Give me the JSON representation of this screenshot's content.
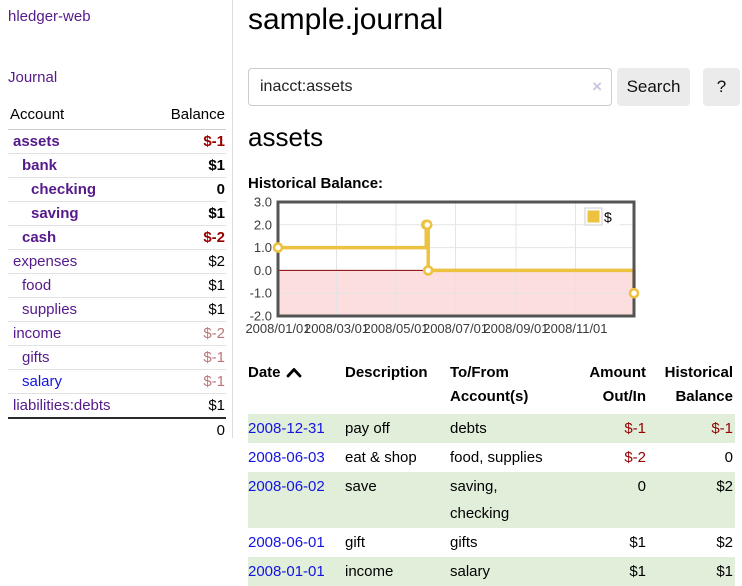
{
  "sidebar": {
    "brand": "hledger-web",
    "nav_journal": "Journal",
    "accounts_table": {
      "header_account": "Account",
      "header_balance": "Balance",
      "rows": [
        {
          "name": "assets",
          "level": 1,
          "bold": true,
          "balance": "$-1",
          "balance_style": "neg-strong"
        },
        {
          "name": "bank",
          "level": 2,
          "bold": true,
          "balance": "$1",
          "balance_style": "normal"
        },
        {
          "name": "checking",
          "level": 3,
          "bold": true,
          "balance": "0",
          "balance_style": "normal"
        },
        {
          "name": "saving",
          "level": 3,
          "bold": true,
          "balance": "$1",
          "balance_style": "normal"
        },
        {
          "name": "cash",
          "level": 2,
          "bold": true,
          "balance": "$-2",
          "balance_style": "neg-strong"
        },
        {
          "name": "expenses",
          "level": 1,
          "bold": false,
          "balance": "$2",
          "balance_style": "normal"
        },
        {
          "name": "food",
          "level": 2,
          "bold": false,
          "balance": "$1",
          "balance_style": "normal"
        },
        {
          "name": "supplies",
          "level": 2,
          "bold": false,
          "balance": "$1",
          "balance_style": "normal"
        },
        {
          "name": "income",
          "level": 1,
          "bold": false,
          "balance": "$-2",
          "balance_style": "neg-faded"
        },
        {
          "name": "gifts",
          "level": 2,
          "bold": false,
          "balance": "$-1",
          "balance_style": "neg-faded"
        },
        {
          "name": "salary",
          "level": 2,
          "bold": false,
          "balance": "$-1",
          "balance_style": "neg-faded",
          "unvisited": true
        },
        {
          "name": "liabilities:debts",
          "level": 1,
          "bold": false,
          "balance": "$1",
          "balance_style": "normal"
        }
      ],
      "total": "0"
    }
  },
  "header": {
    "title": "sample.journal"
  },
  "search": {
    "value": "inacct:assets",
    "clear_icon": "×",
    "button_label": "Search",
    "help_label": "?"
  },
  "account_page": {
    "heading": "assets",
    "chart_label": "Historical Balance:"
  },
  "chart_data": {
    "type": "line",
    "title": "Historical Balance",
    "step": true,
    "series": [
      {
        "name": "$",
        "x": [
          "2008-01-01",
          "2008-06-01",
          "2008-06-02",
          "2008-06-03",
          "2008-12-31"
        ],
        "values": [
          1,
          2,
          2,
          0,
          -1
        ]
      }
    ],
    "xlim": [
      "2008-01-01",
      "2008-12-31"
    ],
    "ylim": [
      -2,
      3
    ],
    "yticks": [
      3.0,
      2.0,
      1.0,
      0.0,
      -1.0,
      -2.0
    ],
    "xticks": [
      "2008/01/01",
      "2008/03/01",
      "2008/05/01",
      "2008/07/01",
      "2008/09/01",
      "2008/11/01"
    ],
    "grid": true,
    "legend_position": "top-right",
    "line_color": "#EDC240",
    "negative_fill": "#fcdede",
    "zero_line_color": "#8b0000",
    "border_color": "#545454",
    "grid_color": "#e4e4e4"
  },
  "register_table": {
    "headers": {
      "date": "Date",
      "description": "Description",
      "accounts": "To/From Account(s)",
      "amount": "Amount Out/In",
      "balance": "Historical Balance"
    },
    "sort": "date-ascending",
    "rows": [
      {
        "date": "2008-12-31",
        "description": "pay off",
        "accounts": "debts",
        "amount": "$-1",
        "balance": "$-1"
      },
      {
        "date": "2008-06-03",
        "description": "eat & shop",
        "accounts": "food, supplies",
        "amount": "$-2",
        "balance": "0"
      },
      {
        "date": "2008-06-02",
        "description": "save",
        "accounts": "saving, checking",
        "amount": "0",
        "balance": "$2"
      },
      {
        "date": "2008-06-01",
        "description": "gift",
        "accounts": "gifts",
        "amount": "$1",
        "balance": "$2"
      },
      {
        "date": "2008-01-01",
        "description": "income",
        "accounts": "salary",
        "amount": "$1",
        "balance": "$1"
      }
    ]
  },
  "colors": {
    "link_visited_purple": "#551A8B",
    "link_unvisited_blue": "#1414e0",
    "negative_strong": "#990000",
    "negative_faded": "#bb7777",
    "row_green": "#e0eeda"
  }
}
